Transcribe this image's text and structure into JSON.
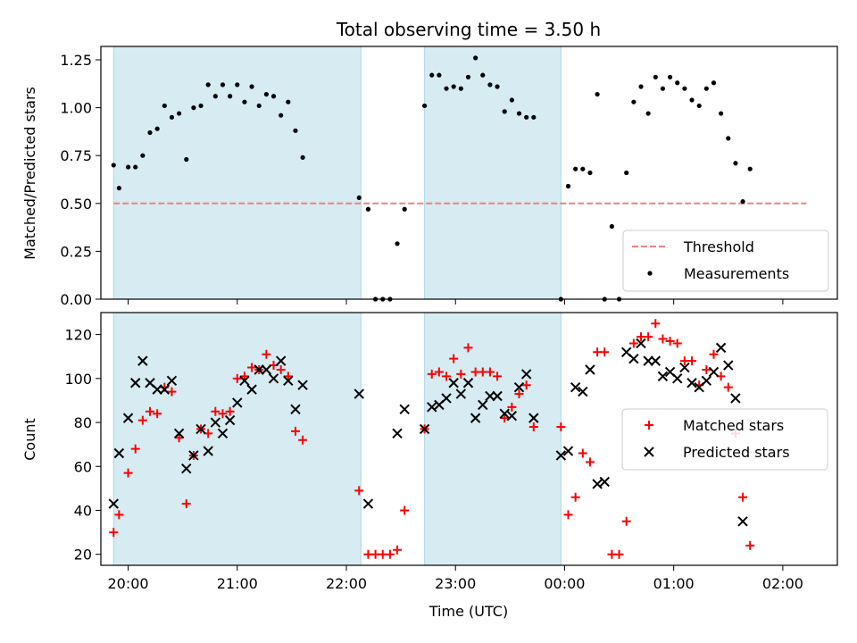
{
  "chart_data": [
    {
      "type": "scatter",
      "title": "Total observing time = 3.50 h",
      "ylabel": "Matched/Predicted stars",
      "xlabel": "",
      "ylim": [
        0,
        1.32
      ],
      "yticks": [
        "0.00",
        "0.25",
        "0.50",
        "0.75",
        "1.00",
        "1.25"
      ],
      "ytick_values": [
        0,
        0.25,
        0.5,
        0.75,
        1.0,
        1.25
      ],
      "xlim": [
        "19:45",
        "02:30"
      ],
      "shaded_intervals": [
        [
          "19:52",
          "22:08"
        ],
        [
          "22:43",
          "23:58"
        ]
      ],
      "threshold": {
        "name": "Threshold",
        "value": 0.5,
        "color": "#f08080",
        "style": "dashed",
        "x_range": [
          "19:52",
          "02:13"
        ]
      },
      "legend": [
        "Threshold",
        "Measurements"
      ],
      "legend_position": "lower-right",
      "series": [
        {
          "name": "Measurements",
          "color": "#000000",
          "points": [
            [
              "19:52",
              0.7
            ],
            [
              "19:55",
              0.58
            ],
            [
              "20:00",
              0.69
            ],
            [
              "20:04",
              0.69
            ],
            [
              "20:08",
              0.75
            ],
            [
              "20:12",
              0.87
            ],
            [
              "20:16",
              0.89
            ],
            [
              "20:20",
              1.01
            ],
            [
              "20:24",
              0.95
            ],
            [
              "20:28",
              0.97
            ],
            [
              "20:32",
              0.73
            ],
            [
              "20:36",
              1.0
            ],
            [
              "20:40",
              1.01
            ],
            [
              "20:44",
              1.12
            ],
            [
              "20:48",
              1.06
            ],
            [
              "20:52",
              1.12
            ],
            [
              "20:56",
              1.06
            ],
            [
              "21:00",
              1.12
            ],
            [
              "21:04",
              1.03
            ],
            [
              "21:08",
              1.11
            ],
            [
              "21:12",
              1.01
            ],
            [
              "21:16",
              1.07
            ],
            [
              "21:20",
              1.06
            ],
            [
              "21:24",
              0.96
            ],
            [
              "21:28",
              1.03
            ],
            [
              "21:32",
              0.88
            ],
            [
              "21:36",
              0.74
            ],
            [
              "22:07",
              0.53
            ],
            [
              "22:12",
              0.47
            ],
            [
              "22:16",
              0.0
            ],
            [
              "22:20",
              0.0
            ],
            [
              "22:24",
              0.0
            ],
            [
              "22:28",
              0.29
            ],
            [
              "22:32",
              0.47
            ],
            [
              "22:43",
              1.01
            ],
            [
              "22:47",
              1.17
            ],
            [
              "22:51",
              1.17
            ],
            [
              "22:55",
              1.1
            ],
            [
              "22:59",
              1.11
            ],
            [
              "23:03",
              1.1
            ],
            [
              "23:07",
              1.16
            ],
            [
              "23:11",
              1.26
            ],
            [
              "23:15",
              1.17
            ],
            [
              "23:19",
              1.12
            ],
            [
              "23:23",
              1.11
            ],
            [
              "23:27",
              0.98
            ],
            [
              "23:31",
              1.04
            ],
            [
              "23:35",
              0.97
            ],
            [
              "23:39",
              0.95
            ],
            [
              "23:43",
              0.95
            ],
            [
              "23:58",
              0.0
            ],
            [
              "00:02",
              0.59
            ],
            [
              "00:06",
              0.68
            ],
            [
              "00:10",
              0.68
            ],
            [
              "00:14",
              0.66
            ],
            [
              "00:18",
              1.07
            ],
            [
              "00:22",
              0.0
            ],
            [
              "00:26",
              0.38
            ],
            [
              "00:30",
              0.0
            ],
            [
              "00:34",
              0.66
            ],
            [
              "00:38",
              1.03
            ],
            [
              "00:42",
              1.11
            ],
            [
              "00:46",
              0.97
            ],
            [
              "00:50",
              1.16
            ],
            [
              "00:54",
              1.1
            ],
            [
              "00:58",
              1.16
            ],
            [
              "01:02",
              1.13
            ],
            [
              "01:06",
              1.1
            ],
            [
              "01:10",
              1.04
            ],
            [
              "01:14",
              1.01
            ],
            [
              "01:18",
              1.1
            ],
            [
              "01:22",
              1.13
            ],
            [
              "01:26",
              0.97
            ],
            [
              "01:30",
              0.84
            ],
            [
              "01:34",
              0.71
            ],
            [
              "01:38",
              0.51
            ],
            [
              "01:42",
              0.68
            ]
          ]
        }
      ]
    },
    {
      "type": "scatter",
      "title": "",
      "ylabel": "Count",
      "xlabel": "Time (UTC)",
      "ylim": [
        15,
        130
      ],
      "yticks": [
        "20",
        "40",
        "60",
        "80",
        "100",
        "120"
      ],
      "ytick_values": [
        20,
        40,
        60,
        80,
        100,
        120
      ],
      "xlim": [
        "19:45",
        "02:30"
      ],
      "xticks": [
        "20:00",
        "21:00",
        "22:00",
        "23:00",
        "00:00",
        "01:00",
        "02:00"
      ],
      "shaded_intervals": [
        [
          "19:52",
          "22:08"
        ],
        [
          "22:43",
          "23:58"
        ]
      ],
      "legend": [
        "Matched stars",
        "Predicted stars"
      ],
      "legend_position": "center-right",
      "series": [
        {
          "name": "Matched stars",
          "color": "#ff0000",
          "marker": "plus",
          "points": [
            [
              "19:52",
              30
            ],
            [
              "19:55",
              38
            ],
            [
              "20:00",
              57
            ],
            [
              "20:04",
              68
            ],
            [
              "20:08",
              81
            ],
            [
              "20:12",
              85
            ],
            [
              "20:16",
              84
            ],
            [
              "20:20",
              96
            ],
            [
              "20:24",
              94
            ],
            [
              "20:28",
              73
            ],
            [
              "20:32",
              43
            ],
            [
              "20:36",
              65
            ],
            [
              "20:40",
              77
            ],
            [
              "20:44",
              75
            ],
            [
              "20:48",
              85
            ],
            [
              "20:52",
              84
            ],
            [
              "20:56",
              85
            ],
            [
              "21:00",
              100
            ],
            [
              "21:04",
              101
            ],
            [
              "21:08",
              105
            ],
            [
              "21:12",
              104
            ],
            [
              "21:16",
              111
            ],
            [
              "21:20",
              106
            ],
            [
              "21:24",
              104
            ],
            [
              "21:28",
              101
            ],
            [
              "21:32",
              76
            ],
            [
              "21:36",
              72
            ],
            [
              "22:07",
              49
            ],
            [
              "22:12",
              20
            ],
            [
              "22:16",
              20
            ],
            [
              "22:20",
              20
            ],
            [
              "22:24",
              20
            ],
            [
              "22:28",
              22
            ],
            [
              "22:32",
              40
            ],
            [
              "22:43",
              77
            ],
            [
              "22:47",
              102
            ],
            [
              "22:51",
              103
            ],
            [
              "22:55",
              101
            ],
            [
              "22:59",
              109
            ],
            [
              "23:03",
              102
            ],
            [
              "23:07",
              114
            ],
            [
              "23:11",
              103
            ],
            [
              "23:15",
              103
            ],
            [
              "23:19",
              103
            ],
            [
              "23:23",
              101
            ],
            [
              "23:27",
              82
            ],
            [
              "23:31",
              87
            ],
            [
              "23:35",
              93
            ],
            [
              "23:39",
              97
            ],
            [
              "23:43",
              78
            ],
            [
              "23:58",
              78
            ],
            [
              "00:02",
              38
            ],
            [
              "00:06",
              46
            ],
            [
              "00:10",
              66
            ],
            [
              "00:14",
              62
            ],
            [
              "00:18",
              112
            ],
            [
              "00:22",
              112
            ],
            [
              "00:26",
              20
            ],
            [
              "00:30",
              20
            ],
            [
              "00:34",
              35
            ],
            [
              "00:38",
              116
            ],
            [
              "00:42",
              119
            ],
            [
              "00:46",
              119
            ],
            [
              "00:50",
              125
            ],
            [
              "00:54",
              118
            ],
            [
              "00:58",
              117
            ],
            [
              "01:02",
              116
            ],
            [
              "01:06",
              108
            ],
            [
              "01:10",
              108
            ],
            [
              "01:14",
              97
            ],
            [
              "01:18",
              104
            ],
            [
              "01:22",
              111
            ],
            [
              "01:26",
              101
            ],
            [
              "01:30",
              96
            ],
            [
              "01:34",
              75
            ],
            [
              "01:38",
              46
            ],
            [
              "01:42",
              24
            ]
          ]
        },
        {
          "name": "Predicted stars",
          "color": "#000000",
          "marker": "x",
          "points": [
            [
              "19:52",
              43
            ],
            [
              "19:55",
              66
            ],
            [
              "20:00",
              82
            ],
            [
              "20:04",
              98
            ],
            [
              "20:08",
              108
            ],
            [
              "20:12",
              98
            ],
            [
              "20:16",
              95
            ],
            [
              "20:20",
              95
            ],
            [
              "20:24",
              99
            ],
            [
              "20:28",
              75
            ],
            [
              "20:32",
              59
            ],
            [
              "20:36",
              65
            ],
            [
              "20:40",
              77
            ],
            [
              "20:44",
              67
            ],
            [
              "20:48",
              80
            ],
            [
              "20:52",
              75
            ],
            [
              "20:56",
              81
            ],
            [
              "21:00",
              89
            ],
            [
              "21:04",
              99
            ],
            [
              "21:08",
              95
            ],
            [
              "21:12",
              104
            ],
            [
              "21:16",
              104
            ],
            [
              "21:20",
              100
            ],
            [
              "21:24",
              108
            ],
            [
              "21:28",
              99
            ],
            [
              "21:32",
              86
            ],
            [
              "21:36",
              97
            ],
            [
              "22:07",
              93
            ],
            [
              "22:12",
              43
            ],
            [
              "22:28",
              75
            ],
            [
              "22:32",
              86
            ],
            [
              "22:43",
              77
            ],
            [
              "22:47",
              87
            ],
            [
              "22:51",
              88
            ],
            [
              "22:55",
              91
            ],
            [
              "22:59",
              98
            ],
            [
              "23:03",
              93
            ],
            [
              "23:07",
              98
            ],
            [
              "23:11",
              82
            ],
            [
              "23:15",
              88
            ],
            [
              "23:19",
              92
            ],
            [
              "23:23",
              92
            ],
            [
              "23:27",
              84
            ],
            [
              "23:31",
              83
            ],
            [
              "23:35",
              96
            ],
            [
              "23:39",
              102
            ],
            [
              "23:43",
              82
            ],
            [
              "23:58",
              65
            ],
            [
              "00:02",
              67
            ],
            [
              "00:06",
              96
            ],
            [
              "00:10",
              94
            ],
            [
              "00:14",
              104
            ],
            [
              "00:18",
              52
            ],
            [
              "00:22",
              53
            ],
            [
              "00:34",
              112
            ],
            [
              "00:38",
              109
            ],
            [
              "00:42",
              116
            ],
            [
              "00:46",
              108
            ],
            [
              "00:50",
              108
            ],
            [
              "00:54",
              101
            ],
            [
              "00:58",
              103
            ],
            [
              "01:02",
              100
            ],
            [
              "01:06",
              105
            ],
            [
              "01:10",
              98
            ],
            [
              "01:14",
              96
            ],
            [
              "01:18",
              99
            ],
            [
              "01:22",
              103
            ],
            [
              "01:26",
              114
            ],
            [
              "01:30",
              106
            ],
            [
              "01:34",
              91
            ],
            [
              "01:38",
              35
            ]
          ]
        }
      ]
    }
  ]
}
